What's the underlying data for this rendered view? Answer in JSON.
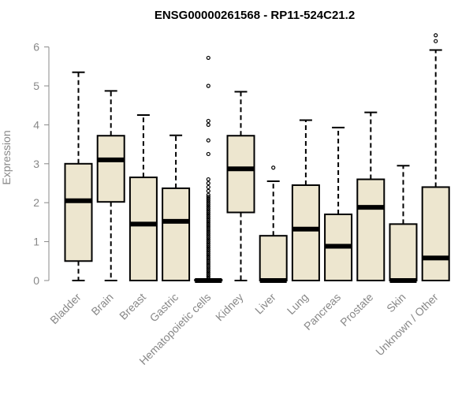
{
  "chart_data": {
    "type": "boxplot",
    "title": "ENSG00000261568 - RP11-524C21.2",
    "ylabel": "Expression",
    "xlabel": "",
    "ylim": [
      0,
      6.3
    ],
    "yticks": [
      0,
      1,
      2,
      3,
      4,
      5,
      6
    ],
    "grid": false,
    "colors": {
      "box_fill": "#ede6cf",
      "stroke": "#000000",
      "axis_text": "#888888"
    },
    "categories": [
      "Bladder",
      "Brain",
      "Breast",
      "Gastric",
      "Hematopoietic cells",
      "Kidney",
      "Liver",
      "Lung",
      "Pancreas",
      "Prostate",
      "Skin",
      "Unknown / Other"
    ],
    "boxes": [
      {
        "min": 0,
        "q1": 0.5,
        "median": 2.05,
        "q3": 3.0,
        "max": 5.35,
        "outliers": []
      },
      {
        "min": 0,
        "q1": 2.02,
        "median": 3.1,
        "q3": 3.72,
        "max": 4.87,
        "outliers": []
      },
      {
        "min": 0,
        "q1": 0,
        "median": 1.45,
        "q3": 2.65,
        "max": 4.25,
        "outliers": []
      },
      {
        "min": 0,
        "q1": 0,
        "median": 1.52,
        "q3": 2.37,
        "max": 3.73,
        "outliers": []
      },
      {
        "min": 0,
        "q1": 0,
        "median": 0,
        "q3": 0.02,
        "max": 0.02,
        "outliers": [
          0.05,
          0.1,
          0.15,
          0.2,
          0.25,
          0.3,
          0.35,
          0.4,
          0.45,
          0.5,
          0.55,
          0.6,
          0.65,
          0.7,
          0.75,
          0.8,
          0.85,
          0.9,
          0.95,
          1.0,
          1.05,
          1.1,
          1.15,
          1.2,
          1.25,
          1.3,
          1.35,
          1.4,
          1.45,
          1.5,
          1.55,
          1.6,
          1.65,
          1.7,
          1.75,
          1.8,
          1.85,
          1.9,
          1.95,
          2.0,
          2.05,
          2.1,
          2.15,
          2.2,
          2.3,
          2.4,
          2.5,
          2.6,
          3.25,
          3.6,
          4.0,
          4.1,
          5.0,
          5.72
        ]
      },
      {
        "min": 0,
        "q1": 1.75,
        "median": 2.87,
        "q3": 3.72,
        "max": 4.85,
        "outliers": []
      },
      {
        "min": 0,
        "q1": 0,
        "median": 0,
        "q3": 1.15,
        "max": 2.55,
        "outliers": [
          2.9
        ]
      },
      {
        "min": 0,
        "q1": 0,
        "median": 1.32,
        "q3": 2.45,
        "max": 4.12,
        "outliers": []
      },
      {
        "min": 0,
        "q1": 0,
        "median": 0.88,
        "q3": 1.7,
        "max": 3.93,
        "outliers": []
      },
      {
        "min": 0,
        "q1": 0,
        "median": 1.88,
        "q3": 2.6,
        "max": 4.32,
        "outliers": []
      },
      {
        "min": 0,
        "q1": 0,
        "median": 0,
        "q3": 1.45,
        "max": 2.95,
        "outliers": []
      },
      {
        "min": 0,
        "q1": 0,
        "median": 0.58,
        "q3": 2.4,
        "max": 5.92,
        "outliers": [
          6.15,
          6.3
        ]
      }
    ]
  }
}
